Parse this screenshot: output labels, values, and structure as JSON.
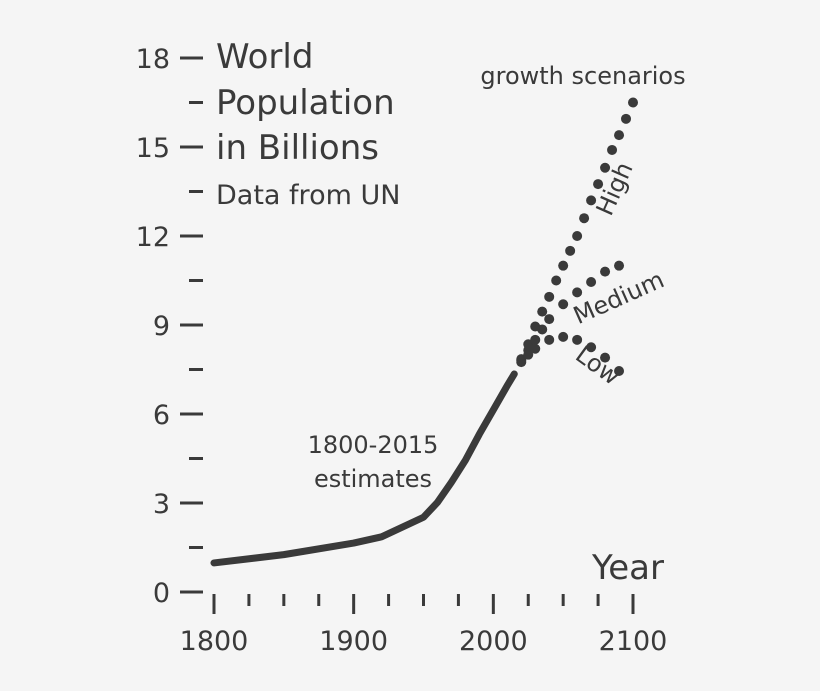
{
  "chart_data": {
    "type": "line",
    "title_lines": [
      "World",
      "Population",
      "in Billions"
    ],
    "subtitle": "Data from UN",
    "xlabel": "Year",
    "ylabel": "",
    "xlim": [
      1800,
      2100
    ],
    "ylim": [
      0,
      18
    ],
    "x_tick_labels": [
      "1800",
      "1900",
      "2000",
      "2100"
    ],
    "x_major_ticks": [
      1800,
      1900,
      2000,
      2100
    ],
    "x_minor_ticks": [
      1825,
      1850,
      1875,
      1925,
      1950,
      1975,
      2025,
      2050,
      2075
    ],
    "y_tick_labels": [
      "0",
      "3",
      "6",
      "9",
      "12",
      "15",
      "18"
    ],
    "y_major_ticks": [
      0,
      3,
      6,
      9,
      12,
      15,
      18
    ],
    "y_minor_ticks": [
      1.5,
      4.5,
      7.5,
      10.5,
      13.5,
      16.5
    ],
    "annotations": {
      "estimates": [
        "1800-2015",
        "estimates"
      ],
      "scenarios": "growth scenarios"
    },
    "color": "#3a3a3a",
    "grid": false,
    "series": [
      {
        "name": "1800-2015 estimates",
        "style": "solid",
        "x": [
          1800,
          1850,
          1900,
          1920,
          1950,
          1960,
          1970,
          1980,
          1990,
          2000,
          2010,
          2015
        ],
        "y": [
          0.98,
          1.26,
          1.65,
          1.86,
          2.52,
          3.02,
          3.7,
          4.44,
          5.32,
          6.14,
          6.96,
          7.35
        ]
      },
      {
        "name": "High",
        "style": "dotted",
        "x": [
          2020,
          2025,
          2030,
          2035,
          2040,
          2045,
          2050,
          2055,
          2060,
          2065,
          2070,
          2075,
          2080,
          2085,
          2090,
          2095,
          2100
        ],
        "y": [
          7.85,
          8.35,
          8.95,
          9.45,
          9.95,
          10.5,
          11.0,
          11.5,
          12.0,
          12.6,
          13.2,
          13.75,
          14.3,
          14.9,
          15.4,
          15.95,
          16.5
        ]
      },
      {
        "name": "Medium",
        "style": "dotted",
        "x": [
          2020,
          2025,
          2030,
          2035,
          2040,
          2050,
          2060,
          2070,
          2080,
          2090
        ],
        "y": [
          7.8,
          8.15,
          8.5,
          8.85,
          9.2,
          9.7,
          10.1,
          10.45,
          10.8,
          11.0
        ]
      },
      {
        "name": "Low",
        "style": "dotted",
        "x": [
          2020,
          2025,
          2030,
          2040,
          2050,
          2060,
          2070,
          2080,
          2090
        ],
        "y": [
          7.75,
          8.0,
          8.2,
          8.5,
          8.6,
          8.5,
          8.25,
          7.9,
          7.45
        ]
      }
    ],
    "scenario_labels": [
      "High",
      "Medium",
      "Low"
    ]
  }
}
